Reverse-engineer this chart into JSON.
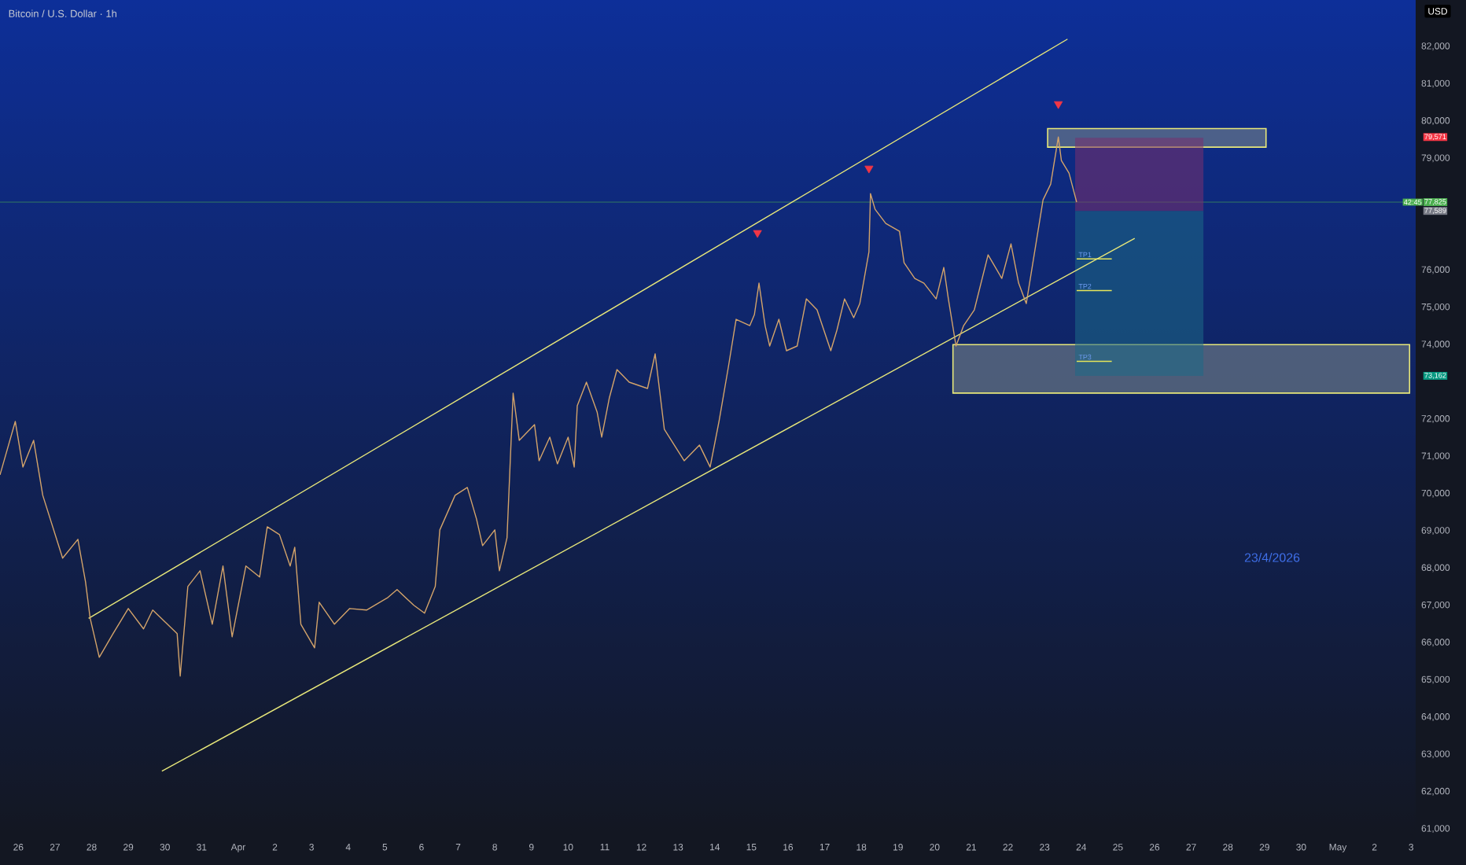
{
  "chart_data": {
    "type": "line",
    "title": "Bitcoin / U.S. Dollar · 1h",
    "ylabel": "USD",
    "xlim": [
      "2026-03-25T12:00",
      "2026-05-03T03:00"
    ],
    "ylim": [
      60750,
      83250
    ],
    "yticks": [
      {
        "value": 61000,
        "label": "61,000"
      },
      {
        "value": 62000,
        "label": "62,000"
      },
      {
        "value": 63000,
        "label": "63,000"
      },
      {
        "value": 64000,
        "label": "64,000"
      },
      {
        "value": 65000,
        "label": "65,000"
      },
      {
        "value": 66000,
        "label": "66,000"
      },
      {
        "value": 67000,
        "label": "67,000"
      },
      {
        "value": 68000,
        "label": "68,000"
      },
      {
        "value": 69000,
        "label": "69,000"
      },
      {
        "value": 70000,
        "label": "70,000"
      },
      {
        "value": 71000,
        "label": "71,000"
      },
      {
        "value": 72000,
        "label": "72,000"
      },
      {
        "value": 74000,
        "label": "74,000"
      },
      {
        "value": 75000,
        "label": "75,000"
      },
      {
        "value": 76000,
        "label": "76,000"
      },
      {
        "value": 79000,
        "label": "79,000"
      },
      {
        "value": 80000,
        "label": "80,000"
      },
      {
        "value": 81000,
        "label": "81,000"
      },
      {
        "value": 82000,
        "label": "82,000"
      }
    ],
    "xticks": [
      {
        "value": "2026-03-26",
        "label": "26"
      },
      {
        "value": "2026-03-27",
        "label": "27"
      },
      {
        "value": "2026-03-28",
        "label": "28"
      },
      {
        "value": "2026-03-29",
        "label": "29"
      },
      {
        "value": "2026-03-30",
        "label": "30"
      },
      {
        "value": "2026-03-31",
        "label": "31"
      },
      {
        "value": "2026-04-01",
        "label": "Apr"
      },
      {
        "value": "2026-04-02",
        "label": "2"
      },
      {
        "value": "2026-04-03",
        "label": "3"
      },
      {
        "value": "2026-04-04",
        "label": "4"
      },
      {
        "value": "2026-04-05",
        "label": "5"
      },
      {
        "value": "2026-04-06",
        "label": "6"
      },
      {
        "value": "2026-04-07",
        "label": "7"
      },
      {
        "value": "2026-04-08",
        "label": "8"
      },
      {
        "value": "2026-04-09",
        "label": "9"
      },
      {
        "value": "2026-04-10",
        "label": "10"
      },
      {
        "value": "2026-04-11",
        "label": "11"
      },
      {
        "value": "2026-04-12",
        "label": "12"
      },
      {
        "value": "2026-04-13",
        "label": "13"
      },
      {
        "value": "2026-04-14",
        "label": "14"
      },
      {
        "value": "2026-04-15",
        "label": "15"
      },
      {
        "value": "2026-04-16",
        "label": "16"
      },
      {
        "value": "2026-04-17",
        "label": "17"
      },
      {
        "value": "2026-04-18",
        "label": "18"
      },
      {
        "value": "2026-04-19",
        "label": "19"
      },
      {
        "value": "2026-04-20",
        "label": "20"
      },
      {
        "value": "2026-04-21",
        "label": "21"
      },
      {
        "value": "2026-04-22",
        "label": "22"
      },
      {
        "value": "2026-04-23",
        "label": "23"
      },
      {
        "value": "2026-04-24",
        "label": "24"
      },
      {
        "value": "2026-04-25",
        "label": "25"
      },
      {
        "value": "2026-04-26",
        "label": "26"
      },
      {
        "value": "2026-04-27",
        "label": "27"
      },
      {
        "value": "2026-04-28",
        "label": "28"
      },
      {
        "value": "2026-04-29",
        "label": "29"
      },
      {
        "value": "2026-04-30",
        "label": "30"
      },
      {
        "value": "2026-05-01",
        "label": "May"
      },
      {
        "value": "2026-05-02",
        "label": "2"
      },
      {
        "value": "2026-05-03",
        "label": "3"
      }
    ],
    "series": [
      {
        "type": "area",
        "color": "#7f8c8c",
        "line_style": "solid",
        "x": [
          "2026-04-23T02:00",
          "2026-04-29T01:00",
          "2026-04-29T01:00",
          "2026-04-23T02:00",
          "2026-04-23T02:00"
        ],
        "values": [
          79300,
          79300,
          79800,
          79800,
          79300
        ]
      },
      {
        "type": "area",
        "color": "#7f8c8c",
        "line_style": "solid",
        "x": [
          "2026-04-20T12:00",
          "2026-05-02T23:00",
          "2026-05-02T23:00",
          "2026-04-20T12:00",
          "2026-04-20T12:00"
        ],
        "values": [
          72700,
          72700,
          74000,
          74000,
          72700
        ]
      },
      {
        "type": "area",
        "color": "#7a2f6e",
        "x": [
          "2026-04-23T20:00",
          "2026-04-27T08:00",
          "2026-04-27T08:00",
          "2026-04-23T20:00",
          "2026-04-23T20:00"
        ],
        "values": [
          77589,
          77589,
          79550,
          79550,
          77589
        ]
      },
      {
        "type": "area",
        "color": "#1d6a86",
        "x": [
          "2026-04-23T20:00",
          "2026-04-27T08:00",
          "2026-04-27T08:00",
          "2026-04-23T20:00",
          "2026-04-23T20:00"
        ],
        "values": [
          73162,
          73162,
          77589,
          77589,
          73162
        ]
      },
      {
        "name": "TP1",
        "color": "#e6e65a",
        "x": [
          "2026-04-23T21:00",
          "2026-04-24T20:00"
        ],
        "values": [
          76300,
          76300
        ]
      },
      {
        "name": "TP2",
        "color": "#e6e65a",
        "x": [
          "2026-04-23T21:00",
          "2026-04-24T20:00"
        ],
        "values": [
          75450,
          75450
        ]
      },
      {
        "name": "TP3",
        "color": "#e6e65a",
        "x": [
          "2026-04-23T21:00",
          "2026-04-24T20:00"
        ],
        "values": [
          73550,
          73550
        ]
      },
      {
        "color": "#e8e87a",
        "x": [
          "2026-03-27T22:00",
          "2026-04-23T15:00"
        ],
        "values": [
          66650,
          82200
        ]
      },
      {
        "color": "#e8e87a",
        "x": [
          "2026-03-29T22:00",
          "2026-04-25T11:00"
        ],
        "values": [
          62550,
          76850
        ]
      },
      {
        "color": "#d4a46a",
        "x": [
          "2026-03-25T12:00",
          "2026-03-25T22:00",
          "2026-03-26T03:00",
          "2026-03-26T10:00",
          "2026-03-26T16:00",
          "2026-03-27T05:00",
          "2026-03-27T15:00",
          "2026-03-27T20:00",
          "2026-03-27T23:00",
          "2026-03-28T05:00",
          "2026-03-28T14:00",
          "2026-03-29T00:00",
          "2026-03-29T10:00",
          "2026-03-29T16:00",
          "2026-03-30T08:00",
          "2026-03-30T10:00",
          "2026-03-30T15:00",
          "2026-03-30T23:00",
          "2026-03-31T07:00",
          "2026-03-31T14:00",
          "2026-03-31T20:00",
          "2026-04-01T05:00",
          "2026-04-01T14:00",
          "2026-04-01T19:00",
          "2026-04-02T03:00",
          "2026-04-02T10:00",
          "2026-04-02T13:00",
          "2026-04-02T17:00",
          "2026-04-03T02:00",
          "2026-04-03T05:00",
          "2026-04-03T15:00",
          "2026-04-04T01:00",
          "2026-04-04T12:00",
          "2026-04-05T02:00",
          "2026-04-05T08:00",
          "2026-04-05T19:00",
          "2026-04-06T02:00",
          "2026-04-06T09:00",
          "2026-04-06T12:00",
          "2026-04-06T22:00",
          "2026-04-07T06:00",
          "2026-04-07T12:00",
          "2026-04-07T16:00",
          "2026-04-08T00:00",
          "2026-04-08T03:00",
          "2026-04-08T08:00",
          "2026-04-08T12:00",
          "2026-04-08T16:00",
          "2026-04-09T02:00",
          "2026-04-09T05:00",
          "2026-04-09T12:00",
          "2026-04-09T17:00",
          "2026-04-10T00:00",
          "2026-04-10T04:00",
          "2026-04-10T06:00",
          "2026-04-10T12:00",
          "2026-04-10T19:00",
          "2026-04-10T22:00",
          "2026-04-11T03:00",
          "2026-04-11T08:00",
          "2026-04-11T16:00",
          "2026-04-12T04:00",
          "2026-04-12T09:00",
          "2026-04-12T15:00",
          "2026-04-13T04:00",
          "2026-04-13T14:00",
          "2026-04-13T21:00",
          "2026-04-14T03:00",
          "2026-04-14T09:00",
          "2026-04-14T14:00",
          "2026-04-14T23:00",
          "2026-04-15T02:00",
          "2026-04-15T05:00",
          "2026-04-15T09:00",
          "2026-04-15T12:00",
          "2026-04-15T18:00",
          "2026-04-15T23:00",
          "2026-04-16T06:00",
          "2026-04-16T12:00",
          "2026-04-16T19:00",
          "2026-04-17T04:00",
          "2026-04-17T08:00",
          "2026-04-17T13:00",
          "2026-04-17T19:00",
          "2026-04-17T23:00",
          "2026-04-18T05:00",
          "2026-04-18T06:00",
          "2026-04-18T09:00",
          "2026-04-18T16:00",
          "2026-04-19T01:00",
          "2026-04-19T04:00",
          "2026-04-19T11:00",
          "2026-04-19T17:00",
          "2026-04-20T01:00",
          "2026-04-20T06:00",
          "2026-04-20T09:00",
          "2026-04-20T14:00",
          "2026-04-20T19:00",
          "2026-04-21T02:00",
          "2026-04-21T11:00",
          "2026-04-21T20:00",
          "2026-04-22T02:00",
          "2026-04-22T07:00",
          "2026-04-22T12:00",
          "2026-04-22T17:00",
          "2026-04-22T23:00",
          "2026-04-23T04:00",
          "2026-04-23T09:00",
          "2026-04-23T11:00",
          "2026-04-23T16:00",
          "2026-04-23T21:00"
        ],
        "values": [
          70503,
          71937,
          70714,
          71431,
          69955,
          68268,
          68774,
          67635,
          66664,
          65609,
          66242,
          66917,
          66369,
          66875,
          66242,
          65103,
          67508,
          67930,
          66495,
          68057,
          66158,
          68057,
          67761,
          69111,
          68900,
          68057,
          68563,
          66495,
          65862,
          67086,
          66495,
          66917,
          66875,
          67212,
          67423,
          67002,
          66791,
          67508,
          69027,
          69955,
          70166,
          69322,
          68605,
          69027,
          67930,
          68816,
          72697,
          71431,
          71853,
          70883,
          71516,
          70799,
          71516,
          70714,
          72359,
          72992,
          72190,
          71516,
          72570,
          73330,
          72992,
          72823,
          73752,
          71727,
          70883,
          71305,
          70714,
          71979,
          73414,
          74680,
          74511,
          74807,
          75650,
          74511,
          73963,
          74680,
          73836,
          73963,
          75228,
          74933,
          73836,
          74385,
          75228,
          74722,
          75102,
          76494,
          78055,
          77633,
          77254,
          77043,
          76199,
          75777,
          75650,
          75228,
          76072,
          75228,
          73963,
          74511,
          74933,
          76410,
          75777,
          76705,
          75650,
          75102,
          76368,
          77886,
          78308,
          79571,
          78941,
          78604,
          77825
        ]
      },
      {
        "type": "scatter",
        "color": "#f23645",
        "marker": "triangle",
        "x": [
          "2026-04-15T04:00",
          "2026-04-18T05:00",
          "2026-04-23T09:00"
        ],
        "values": [
          77000,
          78730,
          80460
        ]
      }
    ],
    "ref_lines": [
      {
        "axis": "y",
        "value": 77825,
        "label": "77,825",
        "color": "#4caf50"
      }
    ],
    "annotations": [
      "79,571",
      "77,589",
      "73,162",
      "42:45",
      "23/4/2026"
    ]
  }
}
